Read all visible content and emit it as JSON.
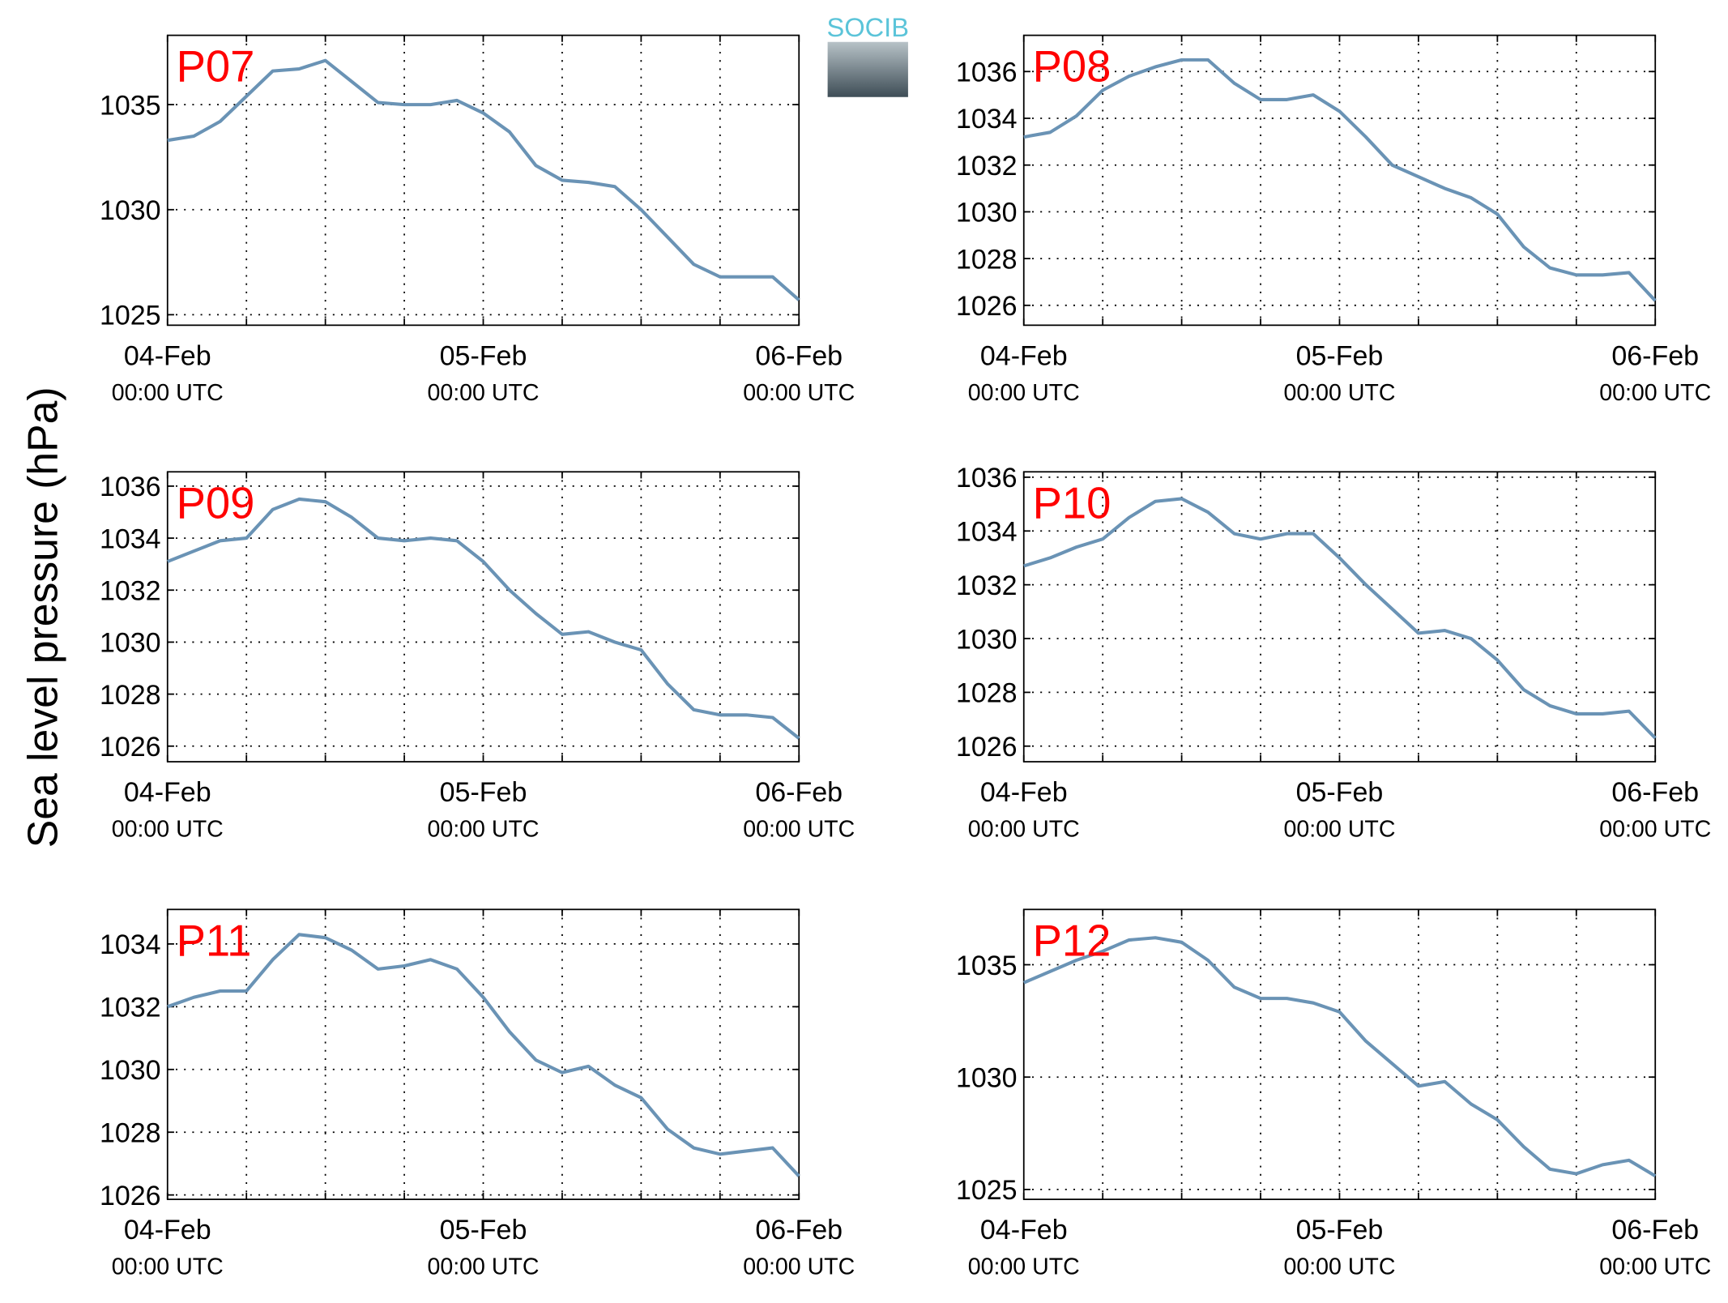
{
  "ylabel": "Sea level pressure (hPa)",
  "logo": "SOCIB",
  "chart_data": [
    {
      "type": "line",
      "title": "P07",
      "color": "#6a93b5",
      "grid": true,
      "x": [
        "04-Feb 00:00",
        "04-Feb 02:00",
        "04-Feb 04:00",
        "04-Feb 06:00",
        "04-Feb 08:00",
        "04-Feb 10:00",
        "04-Feb 12:00",
        "04-Feb 14:00",
        "04-Feb 16:00",
        "04-Feb 18:00",
        "04-Feb 20:00",
        "04-Feb 22:00",
        "05-Feb 00:00",
        "05-Feb 02:00",
        "05-Feb 04:00",
        "05-Feb 06:00",
        "05-Feb 08:00",
        "05-Feb 10:00",
        "05-Feb 12:00",
        "05-Feb 14:00",
        "05-Feb 16:00",
        "05-Feb 18:00",
        "05-Feb 20:00",
        "05-Feb 22:00",
        "06-Feb 00:00"
      ],
      "values": [
        1033.3,
        1033.5,
        1034.2,
        1035.4,
        1036.6,
        1036.7,
        1037.1,
        1036.1,
        1035.1,
        1035.0,
        1035.0,
        1035.2,
        1034.6,
        1033.7,
        1032.1,
        1031.4,
        1031.3,
        1031.1,
        1030.0,
        1028.7,
        1027.4,
        1026.8,
        1026.8,
        1026.8,
        1025.7
      ],
      "xlim": [
        "04-Feb 00:00",
        "06-Feb 00:00"
      ],
      "ylim": [
        1024.5,
        1038.3
      ],
      "yticks": [
        1025,
        1030,
        1035
      ],
      "xticks": [
        {
          "value": "04-Feb 00:00",
          "label": "04-Feb",
          "sublabel": "00:00 UTC"
        },
        {
          "value": "04-Feb 06:00",
          "label": null
        },
        {
          "value": "04-Feb 12:00",
          "label": null
        },
        {
          "value": "04-Feb 18:00",
          "label": null
        },
        {
          "value": "05-Feb 00:00",
          "label": "05-Feb",
          "sublabel": "00:00 UTC"
        },
        {
          "value": "05-Feb 06:00",
          "label": null
        },
        {
          "value": "05-Feb 12:00",
          "label": null
        },
        {
          "value": "05-Feb 18:00",
          "label": null
        },
        {
          "value": "06-Feb 00:00",
          "label": "06-Feb",
          "sublabel": "00:00 UTC"
        }
      ]
    },
    {
      "type": "line",
      "title": "P08",
      "color": "#6a93b5",
      "grid": true,
      "x": [
        "04-Feb 00:00",
        "04-Feb 02:00",
        "04-Feb 04:00",
        "04-Feb 06:00",
        "04-Feb 08:00",
        "04-Feb 10:00",
        "04-Feb 12:00",
        "04-Feb 14:00",
        "04-Feb 16:00",
        "04-Feb 18:00",
        "04-Feb 20:00",
        "04-Feb 22:00",
        "05-Feb 00:00",
        "05-Feb 02:00",
        "05-Feb 04:00",
        "05-Feb 06:00",
        "05-Feb 08:00",
        "05-Feb 10:00",
        "05-Feb 12:00",
        "05-Feb 14:00",
        "05-Feb 16:00",
        "05-Feb 18:00",
        "05-Feb 20:00",
        "05-Feb 22:00",
        "06-Feb 00:00"
      ],
      "values": [
        1033.2,
        1033.4,
        1034.1,
        1035.2,
        1035.8,
        1036.2,
        1036.5,
        1036.5,
        1035.5,
        1034.8,
        1034.8,
        1035.0,
        1034.3,
        1033.2,
        1032.0,
        1031.5,
        1031.0,
        1030.6,
        1029.9,
        1028.5,
        1027.6,
        1027.3,
        1027.3,
        1027.4,
        1026.2
      ],
      "xlim": [
        "04-Feb 00:00",
        "06-Feb 00:00"
      ],
      "ylim": [
        1025.15,
        1037.55
      ],
      "yticks": [
        1026,
        1028,
        1030,
        1032,
        1034,
        1036
      ],
      "xticks": [
        {
          "value": "04-Feb 00:00",
          "label": "04-Feb",
          "sublabel": "00:00 UTC"
        },
        {
          "value": "04-Feb 06:00",
          "label": null
        },
        {
          "value": "04-Feb 12:00",
          "label": null
        },
        {
          "value": "04-Feb 18:00",
          "label": null
        },
        {
          "value": "05-Feb 00:00",
          "label": "05-Feb",
          "sublabel": "00:00 UTC"
        },
        {
          "value": "05-Feb 06:00",
          "label": null
        },
        {
          "value": "05-Feb 12:00",
          "label": null
        },
        {
          "value": "05-Feb 18:00",
          "label": null
        },
        {
          "value": "06-Feb 00:00",
          "label": "06-Feb",
          "sublabel": "00:00 UTC"
        }
      ]
    },
    {
      "type": "line",
      "title": "P09",
      "color": "#6a93b5",
      "grid": true,
      "x": [
        "04-Feb 00:00",
        "04-Feb 02:00",
        "04-Feb 04:00",
        "04-Feb 06:00",
        "04-Feb 08:00",
        "04-Feb 10:00",
        "04-Feb 12:00",
        "04-Feb 14:00",
        "04-Feb 16:00",
        "04-Feb 18:00",
        "04-Feb 20:00",
        "04-Feb 22:00",
        "05-Feb 00:00",
        "05-Feb 02:00",
        "05-Feb 04:00",
        "05-Feb 06:00",
        "05-Feb 08:00",
        "05-Feb 10:00",
        "05-Feb 12:00",
        "05-Feb 14:00",
        "05-Feb 16:00",
        "05-Feb 18:00",
        "05-Feb 20:00",
        "05-Feb 22:00",
        "06-Feb 00:00"
      ],
      "values": [
        1033.1,
        1033.5,
        1033.9,
        1034.0,
        1035.1,
        1035.5,
        1035.4,
        1034.8,
        1034.0,
        1033.9,
        1034.0,
        1033.9,
        1033.1,
        1032.0,
        1031.1,
        1030.3,
        1030.4,
        1030.0,
        1029.7,
        1028.4,
        1027.4,
        1027.2,
        1027.2,
        1027.1,
        1026.3
      ],
      "xlim": [
        "04-Feb 00:00",
        "06-Feb 00:00"
      ],
      "ylim": [
        1025.4,
        1036.55
      ],
      "yticks": [
        1026,
        1028,
        1030,
        1032,
        1034,
        1036
      ],
      "xticks": [
        {
          "value": "04-Feb 00:00",
          "label": "04-Feb",
          "sublabel": "00:00 UTC"
        },
        {
          "value": "04-Feb 06:00",
          "label": null
        },
        {
          "value": "04-Feb 12:00",
          "label": null
        },
        {
          "value": "04-Feb 18:00",
          "label": null
        },
        {
          "value": "05-Feb 00:00",
          "label": "05-Feb",
          "sublabel": "00:00 UTC"
        },
        {
          "value": "05-Feb 06:00",
          "label": null
        },
        {
          "value": "05-Feb 12:00",
          "label": null
        },
        {
          "value": "05-Feb 18:00",
          "label": null
        },
        {
          "value": "06-Feb 00:00",
          "label": "06-Feb",
          "sublabel": "00:00 UTC"
        }
      ]
    },
    {
      "type": "line",
      "title": "P10",
      "color": "#6a93b5",
      "grid": true,
      "x": [
        "04-Feb 00:00",
        "04-Feb 02:00",
        "04-Feb 04:00",
        "04-Feb 06:00",
        "04-Feb 08:00",
        "04-Feb 10:00",
        "04-Feb 12:00",
        "04-Feb 14:00",
        "04-Feb 16:00",
        "04-Feb 18:00",
        "04-Feb 20:00",
        "04-Feb 22:00",
        "05-Feb 00:00",
        "05-Feb 02:00",
        "05-Feb 04:00",
        "05-Feb 06:00",
        "05-Feb 08:00",
        "05-Feb 10:00",
        "05-Feb 12:00",
        "05-Feb 14:00",
        "05-Feb 16:00",
        "05-Feb 18:00",
        "05-Feb 20:00",
        "05-Feb 22:00",
        "06-Feb 00:00"
      ],
      "values": [
        1032.7,
        1033.0,
        1033.4,
        1033.7,
        1034.5,
        1035.1,
        1035.2,
        1034.7,
        1033.9,
        1033.7,
        1033.9,
        1033.9,
        1033.0,
        1032.0,
        1031.1,
        1030.2,
        1030.3,
        1030.0,
        1029.2,
        1028.1,
        1027.5,
        1027.2,
        1027.2,
        1027.3,
        1026.3
      ],
      "xlim": [
        "04-Feb 00:00",
        "06-Feb 00:00"
      ],
      "ylim": [
        1025.42,
        1036.2
      ],
      "yticks": [
        1026,
        1028,
        1030,
        1032,
        1034,
        1036
      ],
      "xticks": [
        {
          "value": "04-Feb 00:00",
          "label": "04-Feb",
          "sublabel": "00:00 UTC"
        },
        {
          "value": "04-Feb 06:00",
          "label": null
        },
        {
          "value": "04-Feb 12:00",
          "label": null
        },
        {
          "value": "04-Feb 18:00",
          "label": null
        },
        {
          "value": "05-Feb 00:00",
          "label": "05-Feb",
          "sublabel": "00:00 UTC"
        },
        {
          "value": "05-Feb 06:00",
          "label": null
        },
        {
          "value": "05-Feb 12:00",
          "label": null
        },
        {
          "value": "05-Feb 18:00",
          "label": null
        },
        {
          "value": "06-Feb 00:00",
          "label": "06-Feb",
          "sublabel": "00:00 UTC"
        }
      ]
    },
    {
      "type": "line",
      "title": "P11",
      "color": "#6a93b5",
      "grid": true,
      "x": [
        "04-Feb 00:00",
        "04-Feb 02:00",
        "04-Feb 04:00",
        "04-Feb 06:00",
        "04-Feb 08:00",
        "04-Feb 10:00",
        "04-Feb 12:00",
        "04-Feb 14:00",
        "04-Feb 16:00",
        "04-Feb 18:00",
        "04-Feb 20:00",
        "04-Feb 22:00",
        "05-Feb 00:00",
        "05-Feb 02:00",
        "05-Feb 04:00",
        "05-Feb 06:00",
        "05-Feb 08:00",
        "05-Feb 10:00",
        "05-Feb 12:00",
        "05-Feb 14:00",
        "05-Feb 16:00",
        "05-Feb 18:00",
        "05-Feb 20:00",
        "05-Feb 22:00",
        "06-Feb 00:00"
      ],
      "values": [
        1032.0,
        1032.3,
        1032.5,
        1032.5,
        1033.5,
        1034.3,
        1034.2,
        1033.8,
        1033.2,
        1033.3,
        1033.5,
        1033.2,
        1032.3,
        1031.2,
        1030.3,
        1029.9,
        1030.1,
        1029.5,
        1029.1,
        1028.1,
        1027.5,
        1027.3,
        1027.4,
        1027.5,
        1026.6
      ],
      "xlim": [
        "04-Feb 00:00",
        "06-Feb 00:00"
      ],
      "ylim": [
        1025.86,
        1035.1
      ],
      "yticks": [
        1026,
        1028,
        1030,
        1032,
        1034
      ],
      "xticks": [
        {
          "value": "04-Feb 00:00",
          "label": "04-Feb",
          "sublabel": "00:00 UTC"
        },
        {
          "value": "04-Feb 06:00",
          "label": null
        },
        {
          "value": "04-Feb 12:00",
          "label": null
        },
        {
          "value": "04-Feb 18:00",
          "label": null
        },
        {
          "value": "05-Feb 00:00",
          "label": "05-Feb",
          "sublabel": "00:00 UTC"
        },
        {
          "value": "05-Feb 06:00",
          "label": null
        },
        {
          "value": "05-Feb 12:00",
          "label": null
        },
        {
          "value": "05-Feb 18:00",
          "label": null
        },
        {
          "value": "06-Feb 00:00",
          "label": "06-Feb",
          "sublabel": "00:00 UTC"
        }
      ]
    },
    {
      "type": "line",
      "title": "P12",
      "color": "#6a93b5",
      "grid": true,
      "x": [
        "04-Feb 00:00",
        "04-Feb 02:00",
        "04-Feb 04:00",
        "04-Feb 06:00",
        "04-Feb 08:00",
        "04-Feb 10:00",
        "04-Feb 12:00",
        "04-Feb 14:00",
        "04-Feb 16:00",
        "04-Feb 18:00",
        "04-Feb 20:00",
        "04-Feb 22:00",
        "05-Feb 00:00",
        "05-Feb 02:00",
        "05-Feb 04:00",
        "05-Feb 06:00",
        "05-Feb 08:00",
        "05-Feb 10:00",
        "05-Feb 12:00",
        "05-Feb 14:00",
        "05-Feb 16:00",
        "05-Feb 18:00",
        "05-Feb 20:00",
        "05-Feb 22:00",
        "06-Feb 00:00"
      ],
      "values": [
        1034.2,
        1034.7,
        1035.2,
        1035.6,
        1036.1,
        1036.2,
        1036.0,
        1035.2,
        1034.0,
        1033.5,
        1033.5,
        1033.3,
        1032.9,
        1031.6,
        1030.6,
        1029.6,
        1029.8,
        1028.8,
        1028.1,
        1026.9,
        1025.9,
        1025.7,
        1026.1,
        1026.3,
        1025.6
      ],
      "xlim": [
        "04-Feb 00:00",
        "06-Feb 00:00"
      ],
      "ylim": [
        1024.56,
        1037.46
      ],
      "yticks": [
        1025,
        1030,
        1035
      ],
      "xticks": [
        {
          "value": "04-Feb 00:00",
          "label": "04-Feb",
          "sublabel": "00:00 UTC"
        },
        {
          "value": "04-Feb 06:00",
          "label": null
        },
        {
          "value": "04-Feb 12:00",
          "label": null
        },
        {
          "value": "04-Feb 18:00",
          "label": null
        },
        {
          "value": "05-Feb 00:00",
          "label": "05-Feb",
          "sublabel": "00:00 UTC"
        },
        {
          "value": "05-Feb 06:00",
          "label": null
        },
        {
          "value": "05-Feb 12:00",
          "label": null
        },
        {
          "value": "05-Feb 18:00",
          "label": null
        },
        {
          "value": "06-Feb 00:00",
          "label": "06-Feb",
          "sublabel": "00:00 UTC"
        }
      ]
    }
  ]
}
